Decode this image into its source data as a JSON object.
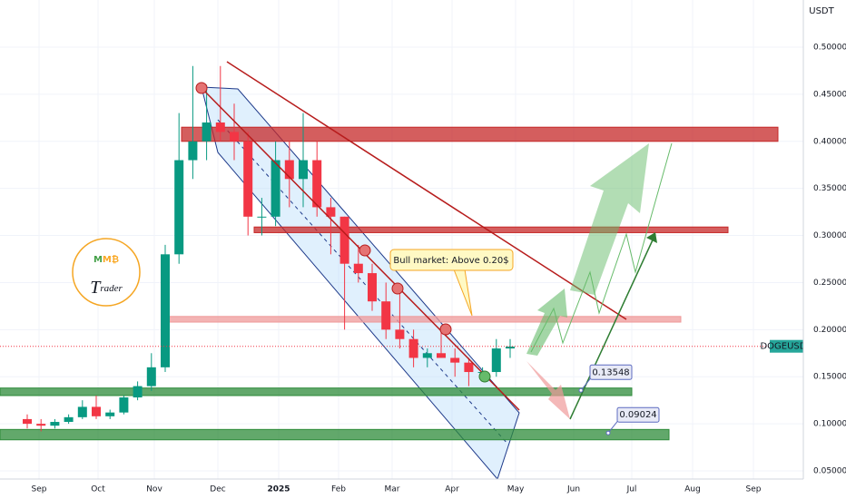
{
  "chart_data": {
    "type": "candlestick",
    "currency": "USDT",
    "symbol": "DOGEUSDT",
    "last_price": 0.18231,
    "x_labels": [
      "Sep",
      "Oct",
      "Nov",
      "Dec",
      "2025",
      "Feb",
      "Mar",
      "Apr",
      "May",
      "Jun",
      "Jul",
      "Aug",
      "Sep"
    ],
    "open": [
      0.105,
      0.1,
      0.098,
      0.102,
      0.107,
      0.118,
      0.108,
      0.112,
      0.128,
      0.14,
      0.16,
      0.28,
      0.38,
      0.4,
      0.42,
      0.41,
      0.4,
      0.32,
      0.32,
      0.38,
      0.36,
      0.38,
      0.33,
      0.32,
      0.27,
      0.26,
      0.23,
      0.2,
      0.19,
      0.17,
      0.175,
      0.17,
      0.165,
      0.155,
      0.155,
      0.18
    ],
    "high": [
      0.11,
      0.105,
      0.105,
      0.11,
      0.125,
      0.13,
      0.115,
      0.13,
      0.145,
      0.175,
      0.29,
      0.43,
      0.48,
      0.46,
      0.48,
      0.44,
      0.41,
      0.34,
      0.4,
      0.4,
      0.43,
      0.4,
      0.34,
      0.32,
      0.29,
      0.27,
      0.25,
      0.24,
      0.2,
      0.18,
      0.2,
      0.18,
      0.17,
      0.16,
      0.19,
      0.19
    ],
    "low": [
      0.095,
      0.092,
      0.095,
      0.1,
      0.105,
      0.105,
      0.105,
      0.11,
      0.125,
      0.135,
      0.155,
      0.27,
      0.36,
      0.38,
      0.4,
      0.38,
      0.3,
      0.3,
      0.31,
      0.33,
      0.33,
      0.32,
      0.28,
      0.2,
      0.25,
      0.22,
      0.19,
      0.18,
      0.16,
      0.16,
      0.17,
      0.15,
      0.14,
      0.15,
      0.15,
      0.17
    ],
    "close": [
      0.1,
      0.098,
      0.102,
      0.107,
      0.118,
      0.108,
      0.112,
      0.128,
      0.14,
      0.16,
      0.28,
      0.38,
      0.4,
      0.42,
      0.41,
      0.4,
      0.32,
      0.32,
      0.38,
      0.36,
      0.38,
      0.33,
      0.32,
      0.27,
      0.26,
      0.23,
      0.2,
      0.19,
      0.17,
      0.175,
      0.17,
      0.165,
      0.155,
      0.155,
      0.18,
      0.182
    ],
    "up_color": "#089981",
    "down_color": "#f23645",
    "ylim": [
      0.05,
      0.5
    ],
    "yticks": [
      {
        "value": 0.05,
        "label": "0.05000"
      },
      {
        "value": 0.1,
        "label": "0.10000"
      },
      {
        "value": 0.15,
        "label": "0.15000"
      },
      {
        "value": 0.2,
        "label": "0.20000"
      },
      {
        "value": 0.25,
        "label": "0.25000"
      },
      {
        "value": 0.3,
        "label": "0.30000"
      },
      {
        "value": 0.35,
        "label": "0.35000"
      },
      {
        "value": 0.4,
        "label": "0.40000"
      },
      {
        "value": 0.45,
        "label": "0.45000"
      },
      {
        "value": 0.5,
        "label": "0.50000"
      }
    ],
    "zones": [
      {
        "low": 0.4,
        "high": 0.415,
        "color": "#c62828"
      },
      {
        "low": 0.303,
        "high": 0.309,
        "color": "#c62828"
      },
      {
        "low": 0.208,
        "high": 0.214,
        "color": "#ef9a9a"
      },
      {
        "low": 0.13,
        "high": 0.138,
        "color": "#2e8b3a"
      },
      {
        "low": 0.083,
        "high": 0.094,
        "color": "#2e8b3a"
      }
    ],
    "price_labels": [
      0.13548,
      0.09024
    ],
    "annotation": "Bull market: Above 0.20$",
    "logo": {
      "letters": [
        "M",
        "M",
        "₿"
      ],
      "caption": [
        "T",
        "rader"
      ]
    }
  }
}
